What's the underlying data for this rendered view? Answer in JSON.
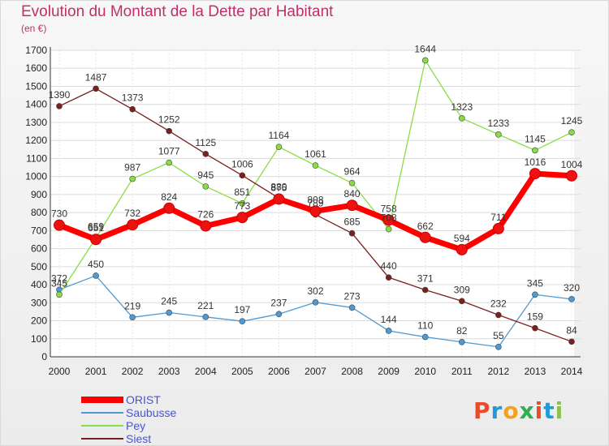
{
  "title": "Evolution du Montant de la Dette par Habitant",
  "subtitle": "(en €)",
  "logo_text": "Proxiti",
  "chart_data": {
    "type": "line",
    "title": "Evolution du Montant de la Dette par Habitant",
    "subtitle": "(en €)",
    "xlabel": "",
    "ylabel": "",
    "x": [
      "2000",
      "2001",
      "2002",
      "2003",
      "2004",
      "2005",
      "2006",
      "2007",
      "2008",
      "2009",
      "2010",
      "2011",
      "2012",
      "2013",
      "2014"
    ],
    "ylim": [
      0,
      1700
    ],
    "yticks": [
      0,
      100,
      200,
      300,
      400,
      500,
      600,
      700,
      800,
      900,
      1000,
      1100,
      1200,
      1300,
      1400,
      1500,
      1600,
      1700
    ],
    "grid": true,
    "legend_position": "bottom-left",
    "series": [
      {
        "name": "ORIST",
        "color": "#ff0000",
        "values": [
          730,
          651,
          732,
          824,
          726,
          773,
          875,
          808,
          840,
          758,
          662,
          594,
          711,
          1016,
          1004
        ]
      },
      {
        "name": "Saubusse",
        "color": "#4f9ad4",
        "values": [
          372,
          450,
          219,
          245,
          221,
          197,
          237,
          302,
          273,
          144,
          110,
          82,
          55,
          345,
          320
        ]
      },
      {
        "name": "Pey",
        "color": "#88dd44",
        "values": [
          345,
          659,
          987,
          1077,
          945,
          851,
          1164,
          1061,
          964,
          708,
          1644,
          1323,
          1233,
          1145,
          1245
        ]
      },
      {
        "name": "Siest",
        "color": "#7a1e1e",
        "values": [
          1390,
          1487,
          1373,
          1252,
          1125,
          1006,
          880,
          789,
          685,
          440,
          371,
          309,
          232,
          159,
          84
        ]
      }
    ]
  }
}
